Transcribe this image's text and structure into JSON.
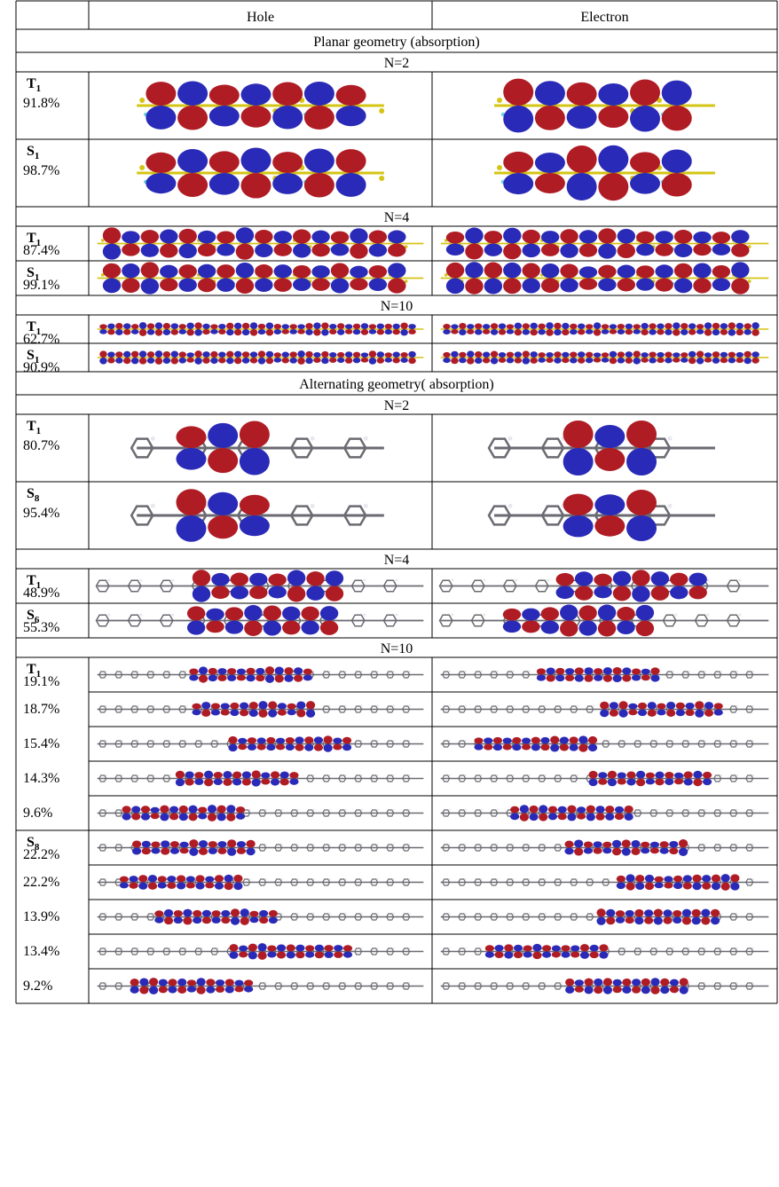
{
  "header": {
    "hole": "Hole",
    "electron": "Electron"
  },
  "sections": [
    {
      "title": "Planar geometry (absorption)",
      "groups": [
        {
          "n": "N=2",
          "rows": [
            {
              "state": "T",
              "sub": "1",
              "pct": "91.8%",
              "style": "planar",
              "scale": 1.0
            },
            {
              "state": "S",
              "sub": "1",
              "pct": "98.7%",
              "style": "planar",
              "scale": 1.0
            }
          ]
        },
        {
          "n": "N=4",
          "rows": [
            {
              "state": "T",
              "sub": "1",
              "pct": "87.4%",
              "style": "planar",
              "scale": 0.6
            },
            {
              "state": "S",
              "sub": "1",
              "pct": "99.1%",
              "style": "planar",
              "scale": 0.6
            }
          ]
        },
        {
          "n": "N=10",
          "rows": [
            {
              "state": "T",
              "sub": "1",
              "pct": "62.7%",
              "style": "planar",
              "scale": 0.25
            },
            {
              "state": "S",
              "sub": "1",
              "pct": "90.9%",
              "style": "planar",
              "scale": 0.25
            }
          ]
        }
      ]
    },
    {
      "title": "Alternating geometry( absorption)",
      "groups": [
        {
          "n": "N=2",
          "rows": [
            {
              "state": "T",
              "sub": "1",
              "pct": "80.7%",
              "style": "alt",
              "scale": 1.0
            },
            {
              "state": "S",
              "sub": "8",
              "pct": "95.4%",
              "style": "alt",
              "scale": 1.0
            }
          ]
        },
        {
          "n": "N=4",
          "rows": [
            {
              "state": "T",
              "sub": "1",
              "pct": "48.9%",
              "style": "alt",
              "scale": 0.6
            },
            {
              "state": "S",
              "sub": "6",
              "pct": "55.3%",
              "style": "alt",
              "scale": 0.6
            }
          ]
        },
        {
          "n": "N=10",
          "rows": [
            {
              "state": "T",
              "sub": "1",
              "pct": "19.1%",
              "style": "alt",
              "scale": 0.3
            },
            {
              "state": "",
              "sub": "",
              "pct": "18.7%",
              "style": "alt",
              "scale": 0.3
            },
            {
              "state": "",
              "sub": "",
              "pct": "15.4%",
              "style": "alt",
              "scale": 0.3
            },
            {
              "state": "",
              "sub": "",
              "pct": "14.3%",
              "style": "alt",
              "scale": 0.3
            },
            {
              "state": "",
              "sub": "",
              "pct": "9.6%",
              "style": "alt",
              "scale": 0.3
            },
            {
              "state": "S",
              "sub": "8",
              "pct": "22.2%",
              "style": "alt",
              "scale": 0.3
            },
            {
              "state": "",
              "sub": "",
              "pct": "22.2%",
              "style": "alt",
              "scale": 0.3
            },
            {
              "state": "",
              "sub": "",
              "pct": "13.9%",
              "style": "alt",
              "scale": 0.3
            },
            {
              "state": "",
              "sub": "",
              "pct": "13.4%",
              "style": "alt",
              "scale": 0.3
            },
            {
              "state": "",
              "sub": "",
              "pct": "9.2%",
              "style": "alt",
              "scale": 0.3
            }
          ]
        }
      ]
    }
  ],
  "colors": {
    "red": "#b01c24",
    "blue": "#2a2ab8",
    "carbon_planar": "#d4c414",
    "carbon_alt": "#6a6a72",
    "hydrogen": "#6ad0e8"
  }
}
